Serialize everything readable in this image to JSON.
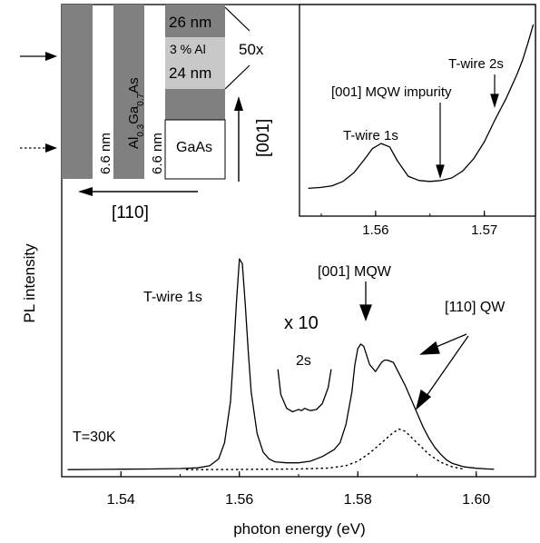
{
  "chart_data": [
    {
      "type": "line",
      "xlabel": "photon energy (eV)",
      "ylabel": "PL intensity",
      "xlim": [
        1.53,
        1.61
      ],
      "ylim": [
        0,
        1
      ],
      "xticks": [
        "1.54",
        "1.56",
        "1.58",
        "1.60"
      ],
      "series": [
        {
          "style": "solid",
          "x": [
            1.531,
            1.535,
            1.54,
            1.545,
            1.55,
            1.553,
            1.555,
            1.5565,
            1.5575,
            1.5585,
            1.559,
            1.5595,
            1.56,
            1.5605,
            1.561,
            1.5615,
            1.562,
            1.563,
            1.564,
            1.565,
            1.566,
            1.568,
            1.57,
            1.572,
            1.574,
            1.576,
            1.577,
            1.578,
            1.579,
            1.5795,
            1.58,
            1.5805,
            1.581,
            1.582,
            1.583,
            1.584,
            1.5845,
            1.585,
            1.586,
            1.587,
            1.588,
            1.589,
            1.59,
            1.591,
            1.592,
            1.593,
            1.594,
            1.595,
            1.596,
            1.598,
            1.6,
            1.602,
            1.603
          ],
          "y": [
            0.003,
            0.004,
            0.005,
            0.006,
            0.008,
            0.011,
            0.02,
            0.05,
            0.12,
            0.3,
            0.5,
            0.73,
            0.92,
            0.9,
            0.72,
            0.52,
            0.34,
            0.16,
            0.08,
            0.05,
            0.037,
            0.033,
            0.033,
            0.04,
            0.06,
            0.09,
            0.12,
            0.2,
            0.34,
            0.46,
            0.53,
            0.55,
            0.54,
            0.46,
            0.43,
            0.47,
            0.48,
            0.48,
            0.47,
            0.42,
            0.37,
            0.31,
            0.25,
            0.19,
            0.14,
            0.1,
            0.07,
            0.045,
            0.03,
            0.015,
            0.009,
            0.006,
            0.005
          ]
        },
        {
          "style": "dotted",
          "x": [
            1.551,
            1.56,
            1.57,
            1.575,
            1.578,
            1.58,
            1.582,
            1.584,
            1.586,
            1.587,
            1.588,
            1.59,
            1.592,
            1.594,
            1.596,
            1.598
          ],
          "y": [
            0.003,
            0.004,
            0.006,
            0.01,
            0.02,
            0.04,
            0.075,
            0.12,
            0.165,
            0.18,
            0.17,
            0.12,
            0.07,
            0.035,
            0.015,
            0.005
          ]
        },
        {
          "style": "solid",
          "x": [
            1.5665,
            1.567,
            1.568,
            1.569,
            1.5695,
            1.57,
            1.5705,
            1.571,
            1.5715,
            1.572,
            1.573,
            1.574,
            1.575,
            1.5755
          ],
          "y": [
            0.44,
            0.33,
            0.27,
            0.255,
            0.26,
            0.265,
            0.26,
            0.27,
            0.265,
            0.26,
            0.265,
            0.29,
            0.36,
            0.44
          ]
        }
      ],
      "annotations": [
        "T-wire 1s",
        "x 10",
        "2s",
        "[001] MQW",
        "[110] QW",
        "T=30K"
      ]
    },
    {
      "type": "line",
      "xlim": [
        1.553,
        1.5747
      ],
      "ylim": [
        0,
        1
      ],
      "xticks": [
        "1.56",
        "1.57"
      ],
      "series": [
        {
          "style": "solid",
          "x": [
            1.5538,
            1.555,
            1.556,
            1.557,
            1.558,
            1.559,
            1.5597,
            1.5605,
            1.5613,
            1.562,
            1.563,
            1.564,
            1.565,
            1.566,
            1.567,
            1.568,
            1.569,
            1.57,
            1.571,
            1.572,
            1.573,
            1.5735,
            1.574,
            1.5745
          ],
          "y": [
            0.04,
            0.045,
            0.055,
            0.08,
            0.13,
            0.21,
            0.27,
            0.3,
            0.28,
            0.2,
            0.11,
            0.085,
            0.08,
            0.085,
            0.1,
            0.14,
            0.21,
            0.31,
            0.44,
            0.56,
            0.7,
            0.78,
            0.88,
            0.99
          ]
        }
      ],
      "annotations": [
        "T-wire 1s",
        "[001] MQW impurity",
        "T-wire 2s"
      ]
    }
  ],
  "schematic": {
    "label_110_dim": "6.6 nm",
    "label_barrier": "Al0.3Ga0.7As",
    "label_001_dim": "6.6 nm",
    "label_gaas": "GaAs",
    "label_26nm": "26 nm",
    "label_3al": "3 % Al",
    "label_24nm": "24 nm",
    "label_50x": "50x",
    "label_001_dir": "[001]",
    "label_110_dir": "[110]"
  }
}
